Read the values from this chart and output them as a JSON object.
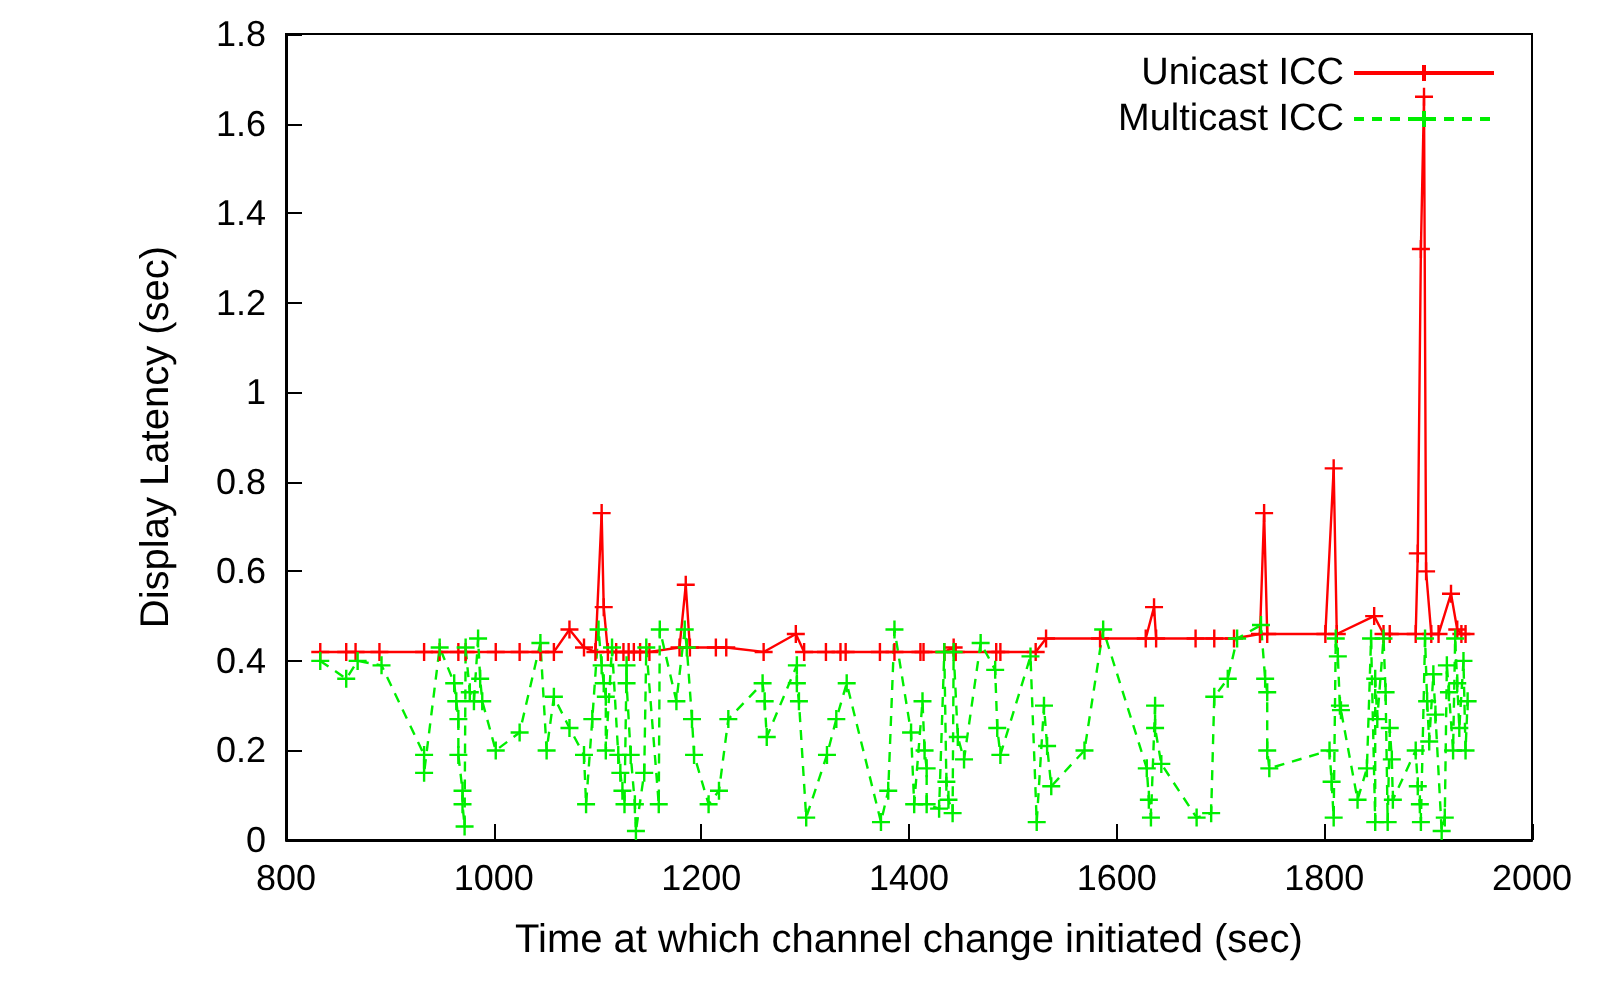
{
  "chart_data": {
    "type": "line",
    "xlabel": "Time at which channel change initiated (sec)",
    "ylabel": "Display Latency (sec)",
    "xlim": [
      800,
      2000
    ],
    "xticks": [
      800,
      1000,
      1200,
      1400,
      1600,
      1800,
      2000
    ],
    "ylim": [
      0,
      1.8
    ],
    "yticks": [
      0,
      0.2,
      0.4,
      0.6,
      0.8,
      1,
      1.2,
      1.4,
      1.6,
      1.8
    ],
    "grid": false,
    "legend": "top right",
    "marker": "cross",
    "series": [
      {
        "name": "Unicast ICC",
        "color": "#ff0000",
        "line_style": "solid",
        "x": [
          833,
          858,
          867,
          890,
          933,
          948,
          966,
          973,
          1002,
          1025,
          1045,
          1058,
          1073,
          1087,
          1098,
          1104,
          1106,
          1110,
          1118,
          1125,
          1130,
          1135,
          1141,
          1150,
          1179,
          1185,
          1189,
          1214,
          1224,
          1260,
          1291,
          1299,
          1320,
          1334,
          1339,
          1372,
          1386,
          1411,
          1414,
          1434,
          1443,
          1445,
          1484,
          1488,
          1522,
          1532,
          1584,
          1628,
          1636,
          1638,
          1676,
          1694,
          1713,
          1738,
          1742,
          1745,
          1801,
          1809,
          1812,
          1848,
          1857,
          1863,
          1888,
          1890,
          1893,
          1896,
          1898,
          1903,
          1910,
          1922,
          1928,
          1932,
          1936
        ],
        "values": [
          0.42,
          0.42,
          0.42,
          0.42,
          0.42,
          0.42,
          0.42,
          0.42,
          0.42,
          0.42,
          0.42,
          0.42,
          0.47,
          0.43,
          0.42,
          0.73,
          0.52,
          0.42,
          0.42,
          0.42,
          0.42,
          0.42,
          0.42,
          0.42,
          0.43,
          0.57,
          0.43,
          0.43,
          0.43,
          0.42,
          0.46,
          0.42,
          0.42,
          0.42,
          0.42,
          0.42,
          0.42,
          0.42,
          0.42,
          0.42,
          0.43,
          0.42,
          0.42,
          0.42,
          0.42,
          0.45,
          0.45,
          0.45,
          0.52,
          0.45,
          0.45,
          0.45,
          0.45,
          0.46,
          0.73,
          0.46,
          0.46,
          0.83,
          0.46,
          0.5,
          0.46,
          0.46,
          0.46,
          0.64,
          1.32,
          1.66,
          0.6,
          0.46,
          0.46,
          0.55,
          0.47,
          0.46,
          0.46
        ]
      },
      {
        "name": "Multicast ICC",
        "color": "#00ee00",
        "line_style": "dashed",
        "x": [
          833,
          858,
          869,
          892,
          933,
          933,
          948,
          962,
          964,
          966,
          966,
          970,
          970,
          972,
          973,
          977,
          981,
          985,
          987,
          989,
          1002,
          1025,
          1045,
          1051,
          1058,
          1073,
          1087,
          1089,
          1095,
          1101,
          1104,
          1106,
          1108,
          1108,
          1114,
          1120,
          1122,
          1124,
          1126,
          1128,
          1128,
          1132,
          1136,
          1137,
          1145,
          1147,
          1159,
          1160,
          1176,
          1184,
          1186,
          1191,
          1193,
          1207,
          1217,
          1226,
          1259,
          1261,
          1263,
          1292,
          1292,
          1294,
          1301,
          1321,
          1330,
          1340,
          1373,
          1380,
          1386,
          1402,
          1405,
          1413,
          1415,
          1417,
          1417,
          1429,
          1434,
          1436,
          1438,
          1442,
          1443,
          1447,
          1453,
          1469,
          1483,
          1485,
          1488,
          1517,
          1523,
          1530,
          1533,
          1537,
          1569,
          1587,
          1629,
          1631,
          1633,
          1637,
          1637,
          1643,
          1677,
          1691,
          1694,
          1707,
          1716,
          1739,
          1743,
          1745,
          1745,
          1747,
          1805,
          1807,
          1809,
          1811,
          1813,
          1815,
          1816,
          1832,
          1841,
          1845,
          1849,
          1849,
          1851,
          1857,
          1859,
          1861,
          1863,
          1865,
          1866,
          1888,
          1890,
          1892,
          1893,
          1897,
          1899,
          1901,
          1905,
          1907,
          1913,
          1916,
          1918,
          1920,
          1924,
          1926,
          1928,
          1930,
          1934,
          1936,
          1938
        ],
        "values": [
          0.4,
          0.36,
          0.4,
          0.39,
          0.19,
          0.15,
          0.43,
          0.35,
          0.31,
          0.27,
          0.19,
          0.11,
          0.08,
          0.03,
          0.43,
          0.33,
          0.31,
          0.45,
          0.36,
          0.31,
          0.2,
          0.24,
          0.44,
          0.2,
          0.32,
          0.25,
          0.19,
          0.08,
          0.27,
          0.47,
          0.39,
          0.35,
          0.32,
          0.2,
          0.43,
          0.19,
          0.15,
          0.11,
          0.08,
          0.39,
          0.35,
          0.19,
          0.08,
          0.02,
          0.15,
          0.43,
          0.08,
          0.47,
          0.31,
          0.47,
          0.43,
          0.27,
          0.19,
          0.08,
          0.11,
          0.27,
          0.35,
          0.31,
          0.23,
          0.39,
          0.35,
          0.31,
          0.05,
          0.19,
          0.27,
          0.35,
          0.04,
          0.11,
          0.47,
          0.24,
          0.08,
          0.31,
          0.2,
          0.16,
          0.08,
          0.07,
          0.42,
          0.13,
          0.09,
          0.06,
          0.42,
          0.23,
          0.18,
          0.44,
          0.38,
          0.25,
          0.19,
          0.41,
          0.04,
          0.3,
          0.21,
          0.12,
          0.2,
          0.47,
          0.16,
          0.09,
          0.05,
          0.3,
          0.25,
          0.17,
          0.05,
          0.06,
          0.32,
          0.36,
          0.45,
          0.48,
          0.36,
          0.33,
          0.2,
          0.16,
          0.2,
          0.13,
          0.05,
          0.45,
          0.41,
          0.3,
          0.29,
          0.09,
          0.16,
          0.45,
          0.04,
          0.36,
          0.27,
          0.45,
          0.33,
          0.04,
          0.25,
          0.18,
          0.09,
          0.2,
          0.12,
          0.08,
          0.04,
          0.45,
          0.31,
          0.22,
          0.37,
          0.28,
          0.02,
          0.05,
          0.39,
          0.33,
          0.2,
          0.45,
          0.35,
          0.25,
          0.4,
          0.2,
          0.31
        ]
      }
    ]
  }
}
